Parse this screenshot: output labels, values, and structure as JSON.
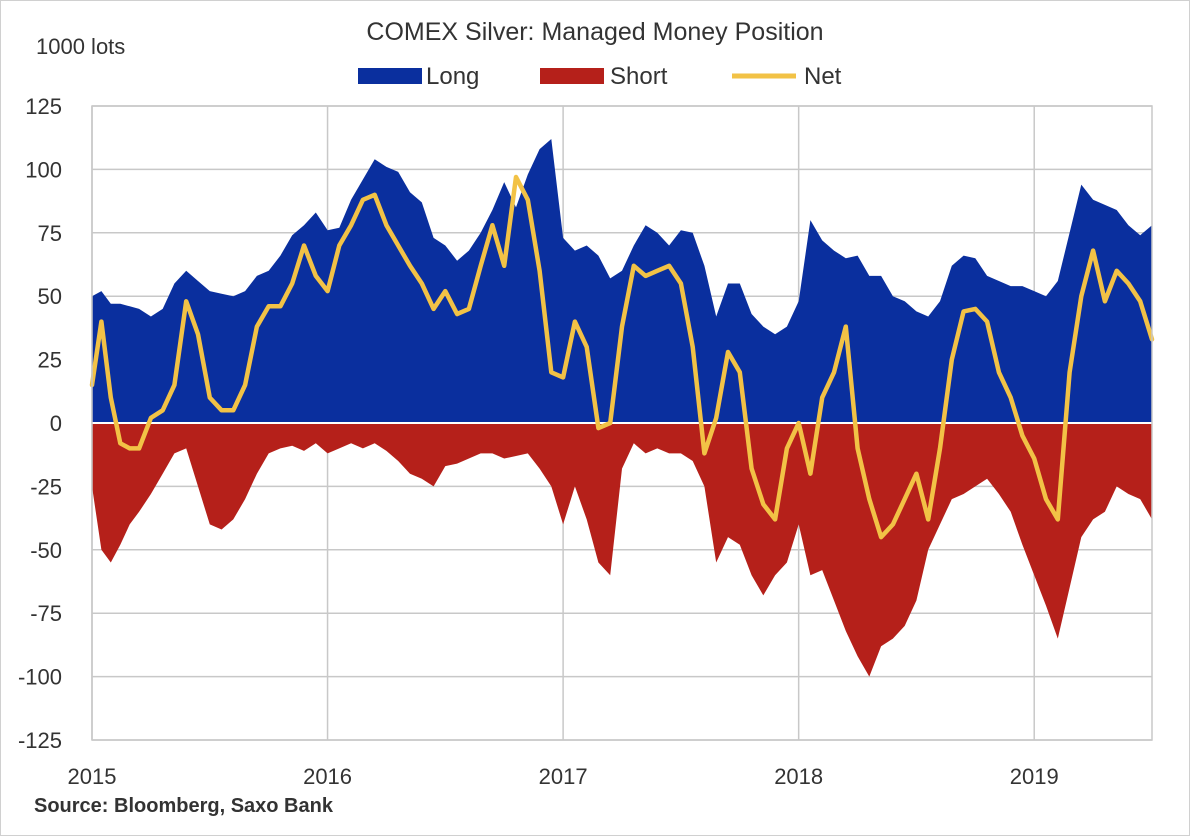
{
  "chart_data": {
    "type": "area",
    "title": "COMEX Silver: Managed Money Position",
    "unit_label": "1000 lots",
    "source": "Source: Bloomberg, Saxo Bank",
    "ylim": [
      -125,
      125
    ],
    "y_ticks": [
      125,
      100,
      75,
      50,
      25,
      0,
      -25,
      -50,
      -75,
      -100,
      -125
    ],
    "y_tick_labels": [
      "125",
      "100",
      "75",
      "50",
      "25",
      "0",
      "-25",
      "-50",
      "-75",
      "-100",
      "-125"
    ],
    "xlim": [
      2015.0,
      2019.5
    ],
    "x_ticks": [
      2015,
      2016,
      2017,
      2018,
      2019
    ],
    "x_tick_labels": [
      "2015",
      "2016",
      "2017",
      "2018",
      "2019"
    ],
    "grid": true,
    "legend_position": "top-center",
    "colors": {
      "long": "#0a2f9e",
      "short": "#b5201a",
      "net": "#f2c246",
      "grid": "#c8c8c8",
      "zero": "#ffffff"
    },
    "x": [
      2015.0,
      2015.04,
      2015.08,
      2015.12,
      2015.16,
      2015.2,
      2015.25,
      2015.3,
      2015.35,
      2015.4,
      2015.45,
      2015.5,
      2015.55,
      2015.6,
      2015.65,
      2015.7,
      2015.75,
      2015.8,
      2015.85,
      2015.9,
      2015.95,
      2016.0,
      2016.05,
      2016.1,
      2016.15,
      2016.2,
      2016.25,
      2016.3,
      2016.35,
      2016.4,
      2016.45,
      2016.5,
      2016.55,
      2016.6,
      2016.65,
      2016.7,
      2016.75,
      2016.8,
      2016.85,
      2016.9,
      2016.95,
      2017.0,
      2017.05,
      2017.1,
      2017.15,
      2017.2,
      2017.25,
      2017.3,
      2017.35,
      2017.4,
      2017.45,
      2017.5,
      2017.55,
      2017.6,
      2017.65,
      2017.7,
      2017.75,
      2017.8,
      2017.85,
      2017.9,
      2017.95,
      2018.0,
      2018.05,
      2018.1,
      2018.15,
      2018.2,
      2018.25,
      2018.3,
      2018.35,
      2018.4,
      2018.45,
      2018.5,
      2018.55,
      2018.6,
      2018.65,
      2018.7,
      2018.75,
      2018.8,
      2018.85,
      2018.9,
      2018.95,
      2019.0,
      2019.05,
      2019.1,
      2019.15,
      2019.2,
      2019.25,
      2019.3,
      2019.35,
      2019.4,
      2019.45,
      2019.5
    ],
    "series": [
      {
        "name": "Long",
        "values": [
          50,
          52,
          47,
          47,
          46,
          45,
          42,
          45,
          55,
          60,
          56,
          52,
          51,
          50,
          52,
          58,
          60,
          66,
          74,
          78,
          83,
          76,
          77,
          88,
          96,
          104,
          101,
          99,
          91,
          87,
          73,
          70,
          64,
          68,
          75,
          84,
          95,
          85,
          98,
          108,
          112,
          73,
          68,
          70,
          66,
          57,
          60,
          70,
          78,
          75,
          70,
          76,
          75,
          62,
          42,
          55,
          55,
          43,
          38,
          35,
          38,
          48,
          80,
          72,
          68,
          65,
          66,
          58,
          58,
          50,
          48,
          44,
          42,
          48,
          62,
          66,
          65,
          58,
          56,
          54,
          54,
          52,
          50,
          56,
          75,
          94,
          88,
          86,
          84,
          78,
          74,
          78
        ]
      },
      {
        "name": "Short",
        "values": [
          -25,
          -50,
          -55,
          -48,
          -40,
          -35,
          -28,
          -20,
          -12,
          -10,
          -25,
          -40,
          -42,
          -38,
          -30,
          -20,
          -12,
          -10,
          -9,
          -11,
          -8,
          -12,
          -10,
          -8,
          -10,
          -8,
          -11,
          -15,
          -20,
          -22,
          -25,
          -17,
          -16,
          -14,
          -12,
          -12,
          -14,
          -13,
          -12,
          -18,
          -25,
          -40,
          -25,
          -38,
          -55,
          -60,
          -18,
          -8,
          -12,
          -10,
          -12,
          -12,
          -15,
          -25,
          -55,
          -45,
          -48,
          -60,
          -68,
          -60,
          -55,
          -40,
          -60,
          -58,
          -70,
          -82,
          -92,
          -100,
          -88,
          -85,
          -80,
          -70,
          -50,
          -40,
          -30,
          -28,
          -25,
          -22,
          -28,
          -35,
          -48,
          -60,
          -72,
          -85,
          -65,
          -45,
          -38,
          -35,
          -25,
          -28,
          -30,
          -38
        ]
      },
      {
        "name": "Net",
        "values": [
          15,
          40,
          10,
          -8,
          -10,
          -10,
          2,
          5,
          15,
          48,
          35,
          10,
          5,
          5,
          15,
          38,
          46,
          46,
          55,
          70,
          58,
          52,
          70,
          78,
          88,
          90,
          78,
          70,
          62,
          55,
          45,
          52,
          43,
          45,
          62,
          78,
          62,
          97,
          88,
          60,
          20,
          18,
          40,
          30,
          -2,
          0,
          38,
          62,
          58,
          60,
          62,
          55,
          30,
          -12,
          2,
          28,
          20,
          -18,
          -32,
          -38,
          -10,
          0,
          -20,
          10,
          20,
          38,
          -10,
          -30,
          -45,
          -40,
          -30,
          -20,
          -38,
          -10,
          25,
          44,
          45,
          40,
          20,
          10,
          -5,
          -14,
          -30,
          -38,
          20,
          50,
          68,
          48,
          60,
          55,
          48,
          33
        ]
      }
    ]
  }
}
